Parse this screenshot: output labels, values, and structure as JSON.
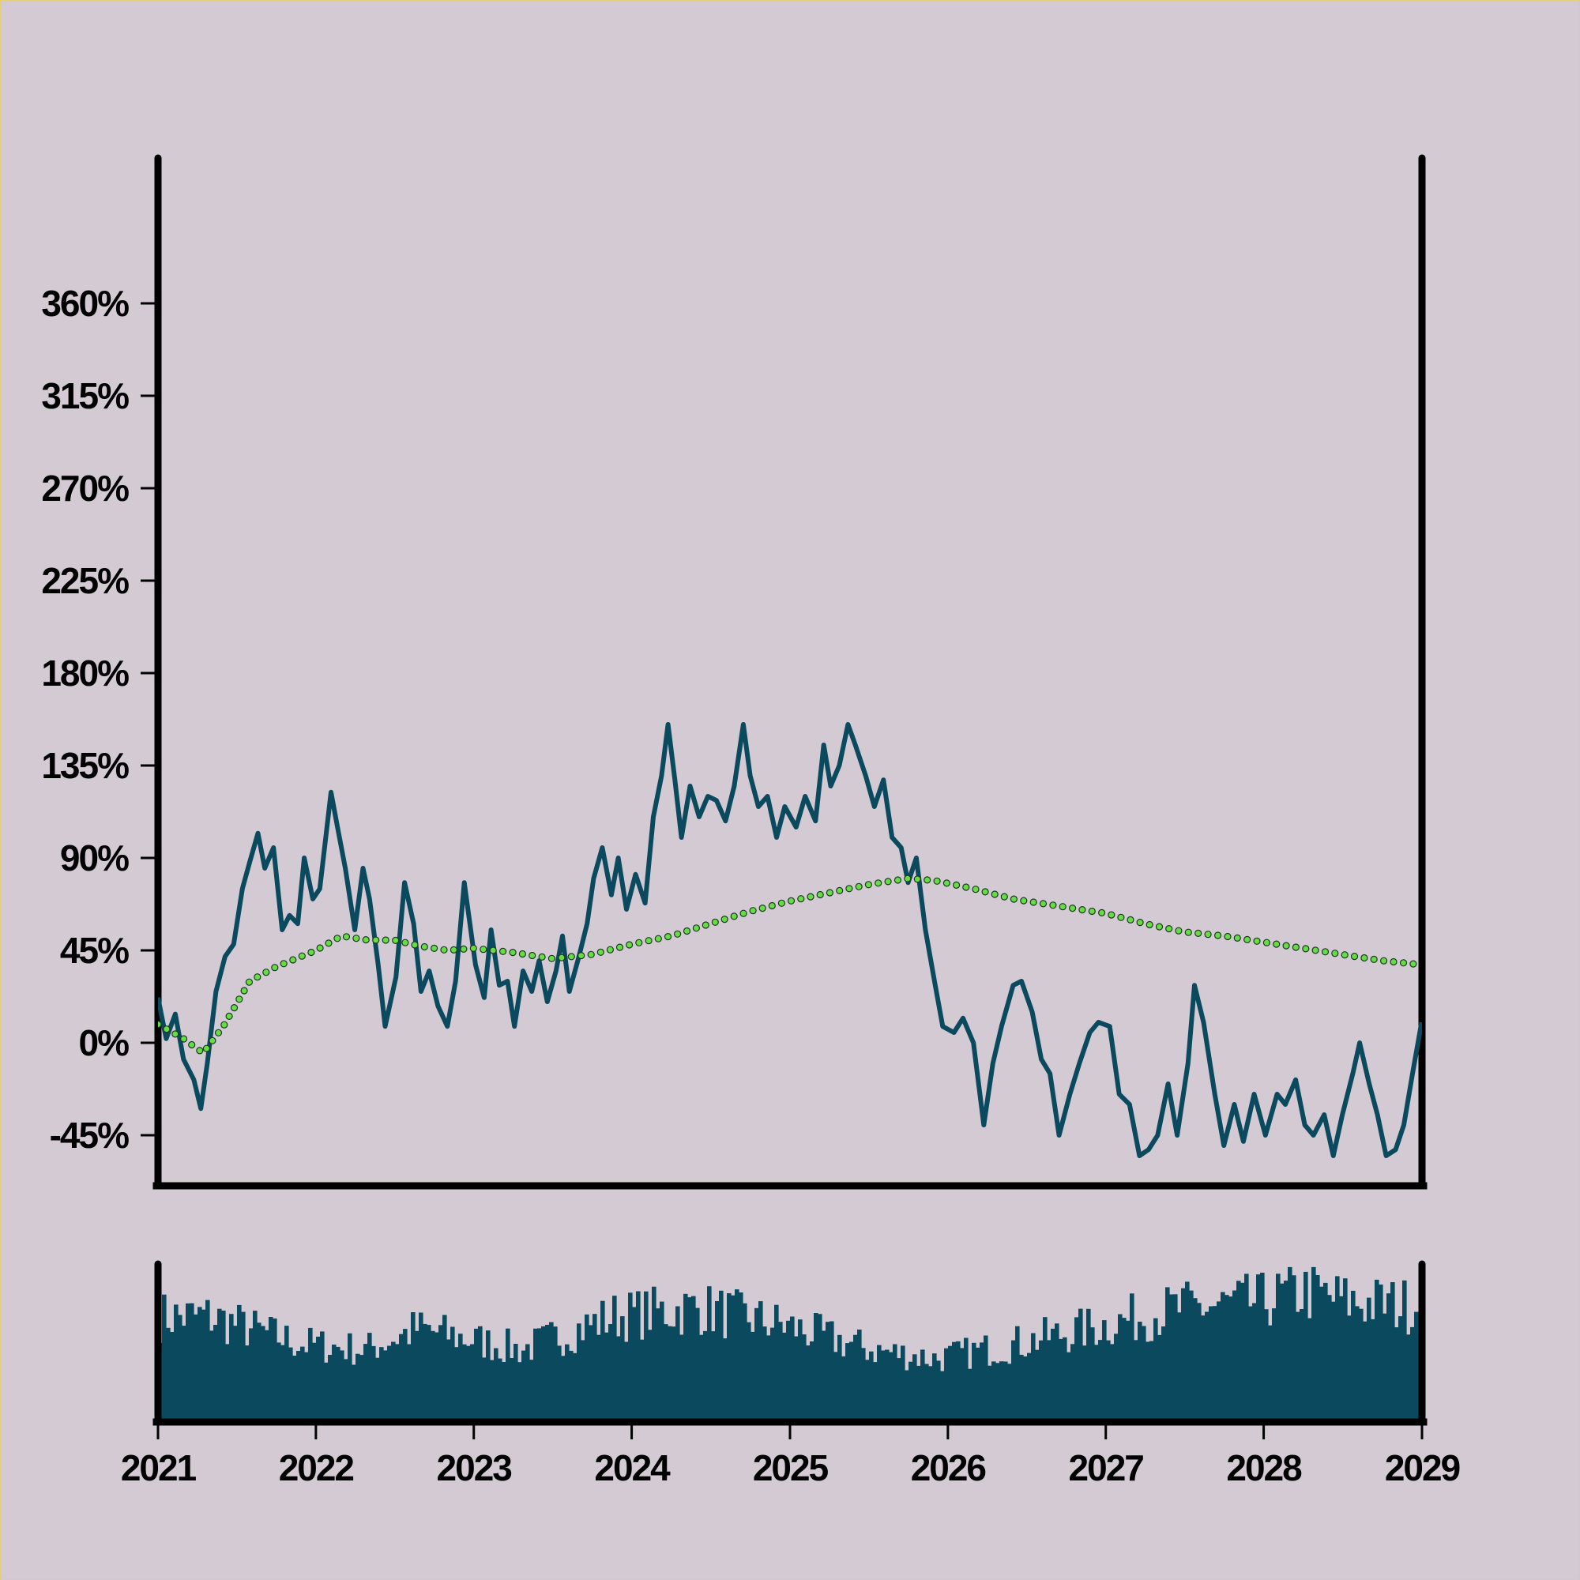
{
  "chart_data": {
    "type": "line",
    "title": "",
    "xlabel": "",
    "ylabel": "",
    "x_range": [
      "2021-01-01",
      "2029-01-01"
    ],
    "ylim": [
      -55,
      405
    ],
    "y_ticks": [
      -45,
      0,
      45,
      90,
      135,
      180,
      225,
      270,
      315,
      360
    ],
    "y_tick_labels": [
      "-45%",
      "0%",
      "45%",
      "90%",
      "135%",
      "180%",
      "225%",
      "270%",
      "315%",
      "360%"
    ],
    "x_ticks": [
      "2021-01-01",
      "2022-01-01",
      "2023-01-01",
      "2024-01-01",
      "2025-01-01",
      "2026-01-01",
      "2027-01-01",
      "2028-01-01",
      "2029-01-01"
    ],
    "x_tick_labels": [
      "2021",
      "2022",
      "2023",
      "2024",
      "2025",
      "2026",
      "2027",
      "2028",
      "2029"
    ],
    "grid": false,
    "legend": "none",
    "series": [
      {
        "style": "solid line",
        "color": "#0b4a5e",
        "points": [
          [
            "2021-01-01",
            22
          ],
          [
            "2021-01-20",
            2
          ],
          [
            "2021-02-10",
            14
          ],
          [
            "2021-03-01",
            -8
          ],
          [
            "2021-03-25",
            -18
          ],
          [
            "2021-04-10",
            -32
          ],
          [
            "2021-04-25",
            -10
          ],
          [
            "2021-05-15",
            25
          ],
          [
            "2021-06-05",
            42
          ],
          [
            "2021-06-25",
            48
          ],
          [
            "2021-07-15",
            75
          ],
          [
            "2021-08-01",
            88
          ],
          [
            "2021-08-20",
            102
          ],
          [
            "2021-09-05",
            85
          ],
          [
            "2021-09-25",
            95
          ],
          [
            "2021-10-15",
            55
          ],
          [
            "2021-11-01",
            62
          ],
          [
            "2021-11-20",
            58
          ],
          [
            "2021-12-05",
            90
          ],
          [
            "2021-12-25",
            70
          ],
          [
            "2022-01-10",
            75
          ],
          [
            "2022-02-05",
            122
          ],
          [
            "2022-02-20",
            105
          ],
          [
            "2022-03-10",
            85
          ],
          [
            "2022-04-01",
            55
          ],
          [
            "2022-04-20",
            85
          ],
          [
            "2022-05-05",
            70
          ],
          [
            "2022-05-25",
            38
          ],
          [
            "2022-06-10",
            8
          ],
          [
            "2022-07-05",
            32
          ],
          [
            "2022-07-25",
            78
          ],
          [
            "2022-08-15",
            58
          ],
          [
            "2022-09-01",
            25
          ],
          [
            "2022-09-20",
            35
          ],
          [
            "2022-10-10",
            18
          ],
          [
            "2022-11-01",
            8
          ],
          [
            "2022-11-20",
            30
          ],
          [
            "2022-12-10",
            78
          ],
          [
            "2023-01-05",
            38
          ],
          [
            "2023-01-25",
            22
          ],
          [
            "2023-02-10",
            55
          ],
          [
            "2023-03-01",
            28
          ],
          [
            "2023-03-20",
            30
          ],
          [
            "2023-04-05",
            8
          ],
          [
            "2023-04-25",
            35
          ],
          [
            "2023-05-15",
            25
          ],
          [
            "2023-06-01",
            40
          ],
          [
            "2023-06-20",
            20
          ],
          [
            "2023-07-10",
            35
          ],
          [
            "2023-07-25",
            52
          ],
          [
            "2023-08-10",
            25
          ],
          [
            "2023-09-01",
            42
          ],
          [
            "2023-09-20",
            58
          ],
          [
            "2023-10-05",
            80
          ],
          [
            "2023-10-25",
            95
          ],
          [
            "2023-11-15",
            72
          ],
          [
            "2023-12-01",
            90
          ],
          [
            "2023-12-20",
            65
          ],
          [
            "2024-01-10",
            82
          ],
          [
            "2024-02-01",
            68
          ],
          [
            "2024-02-20",
            110
          ],
          [
            "2024-03-10",
            130
          ],
          [
            "2024-03-25",
            155
          ],
          [
            "2024-04-10",
            128
          ],
          [
            "2024-04-25",
            100
          ],
          [
            "2024-05-15",
            125
          ],
          [
            "2024-06-05",
            110
          ],
          [
            "2024-06-25",
            120
          ],
          [
            "2024-07-15",
            118
          ],
          [
            "2024-08-05",
            108
          ],
          [
            "2024-08-25",
            125
          ],
          [
            "2024-09-15",
            155
          ],
          [
            "2024-10-01",
            130
          ],
          [
            "2024-10-20",
            115
          ],
          [
            "2024-11-10",
            120
          ],
          [
            "2024-12-01",
            100
          ],
          [
            "2024-12-20",
            115
          ],
          [
            "2025-01-15",
            105
          ],
          [
            "2025-02-05",
            120
          ],
          [
            "2025-03-01",
            108
          ],
          [
            "2025-03-20",
            145
          ],
          [
            "2025-04-05",
            125
          ],
          [
            "2025-04-25",
            135
          ],
          [
            "2025-05-15",
            155
          ],
          [
            "2025-06-01",
            145
          ],
          [
            "2025-06-25",
            130
          ],
          [
            "2025-07-15",
            115
          ],
          [
            "2025-08-05",
            128
          ],
          [
            "2025-08-25",
            100
          ],
          [
            "2025-09-15",
            95
          ],
          [
            "2025-10-01",
            78
          ],
          [
            "2025-10-20",
            90
          ],
          [
            "2025-11-10",
            55
          ],
          [
            "2025-12-01",
            30
          ],
          [
            "2025-12-20",
            8
          ],
          [
            "2026-01-15",
            5
          ],
          [
            "2026-02-05",
            12
          ],
          [
            "2026-03-01",
            0
          ],
          [
            "2026-03-25",
            -40
          ],
          [
            "2026-04-15",
            -10
          ],
          [
            "2026-05-05",
            8
          ],
          [
            "2026-06-01",
            28
          ],
          [
            "2026-06-20",
            30
          ],
          [
            "2026-07-15",
            15
          ],
          [
            "2026-08-05",
            -8
          ],
          [
            "2026-08-25",
            -15
          ],
          [
            "2026-09-15",
            -45
          ],
          [
            "2026-10-10",
            -25
          ],
          [
            "2026-11-01",
            -10
          ],
          [
            "2026-11-25",
            5
          ],
          [
            "2026-12-15",
            10
          ],
          [
            "2027-01-10",
            8
          ],
          [
            "2027-02-01",
            -25
          ],
          [
            "2027-02-25",
            -30
          ],
          [
            "2027-03-20",
            -55
          ],
          [
            "2027-04-10",
            -52
          ],
          [
            "2027-05-01",
            -45
          ],
          [
            "2027-05-25",
            -20
          ],
          [
            "2027-06-15",
            -45
          ],
          [
            "2027-07-10",
            -10
          ],
          [
            "2027-07-25",
            28
          ],
          [
            "2027-08-15",
            10
          ],
          [
            "2027-09-10",
            -25
          ],
          [
            "2027-10-01",
            -50
          ],
          [
            "2027-10-25",
            -30
          ],
          [
            "2027-11-15",
            -48
          ],
          [
            "2027-12-10",
            -25
          ],
          [
            "2028-01-05",
            -45
          ],
          [
            "2028-02-01",
            -25
          ],
          [
            "2028-02-20",
            -30
          ],
          [
            "2028-03-15",
            -18
          ],
          [
            "2028-04-05",
            -40
          ],
          [
            "2028-04-25",
            -45
          ],
          [
            "2028-05-20",
            -35
          ],
          [
            "2028-06-10",
            -55
          ],
          [
            "2028-07-01",
            -35
          ],
          [
            "2028-07-25",
            -15
          ],
          [
            "2028-08-10",
            0
          ],
          [
            "2028-09-01",
            -20
          ],
          [
            "2028-09-20",
            -35
          ],
          [
            "2028-10-10",
            -55
          ],
          [
            "2028-11-01",
            -52
          ],
          [
            "2028-11-20",
            -40
          ],
          [
            "2028-12-10",
            -15
          ],
          [
            "2028-12-31",
            10
          ]
        ]
      },
      {
        "style": "dotted markers",
        "color": "#66dd44",
        "points": [
          [
            "2021-01-01",
            9
          ],
          [
            "2021-03-01",
            2
          ],
          [
            "2021-04-15",
            -5
          ],
          [
            "2021-06-01",
            8
          ],
          [
            "2021-08-01",
            30
          ],
          [
            "2021-10-01",
            37
          ],
          [
            "2022-01-01",
            45
          ],
          [
            "2022-03-01",
            52
          ],
          [
            "2022-05-01",
            50
          ],
          [
            "2022-07-01",
            50
          ],
          [
            "2022-09-01",
            47
          ],
          [
            "2022-11-01",
            45
          ],
          [
            "2023-01-01",
            46
          ],
          [
            "2023-04-01",
            44
          ],
          [
            "2023-07-01",
            41
          ],
          [
            "2023-10-01",
            43
          ],
          [
            "2024-01-01",
            48
          ],
          [
            "2024-04-01",
            52
          ],
          [
            "2024-07-01",
            58
          ],
          [
            "2024-10-01",
            64
          ],
          [
            "2025-01-01",
            69
          ],
          [
            "2025-04-01",
            73
          ],
          [
            "2025-07-01",
            77
          ],
          [
            "2025-10-01",
            80
          ],
          [
            "2025-12-01",
            79
          ],
          [
            "2026-03-01",
            75
          ],
          [
            "2026-06-01",
            70
          ],
          [
            "2026-09-01",
            67
          ],
          [
            "2027-01-01",
            63
          ],
          [
            "2027-04-01",
            58
          ],
          [
            "2027-07-01",
            54
          ],
          [
            "2027-10-01",
            52
          ],
          [
            "2028-01-01",
            49
          ],
          [
            "2028-04-01",
            46
          ],
          [
            "2028-07-01",
            43
          ],
          [
            "2028-10-01",
            40
          ],
          [
            "2028-12-31",
            38
          ]
        ]
      }
    ],
    "volume_panel": {
      "type": "bar",
      "color": "#0b4a5e",
      "seed": 7,
      "values": [
        [
          0,
          68
        ],
        [
          120,
          68
        ],
        [
          330,
          50
        ],
        [
          480,
          46
        ],
        [
          600,
          60
        ],
        [
          840,
          46
        ],
        [
          1050,
          68
        ],
        [
          1250,
          74
        ],
        [
          1450,
          62
        ],
        [
          1650,
          46
        ],
        [
          1800,
          40
        ],
        [
          1950,
          48
        ],
        [
          2150,
          60
        ],
        [
          2350,
          73
        ],
        [
          2550,
          78
        ],
        [
          2650,
          85
        ],
        [
          2750,
          78
        ],
        [
          2921,
          75
        ]
      ]
    }
  }
}
